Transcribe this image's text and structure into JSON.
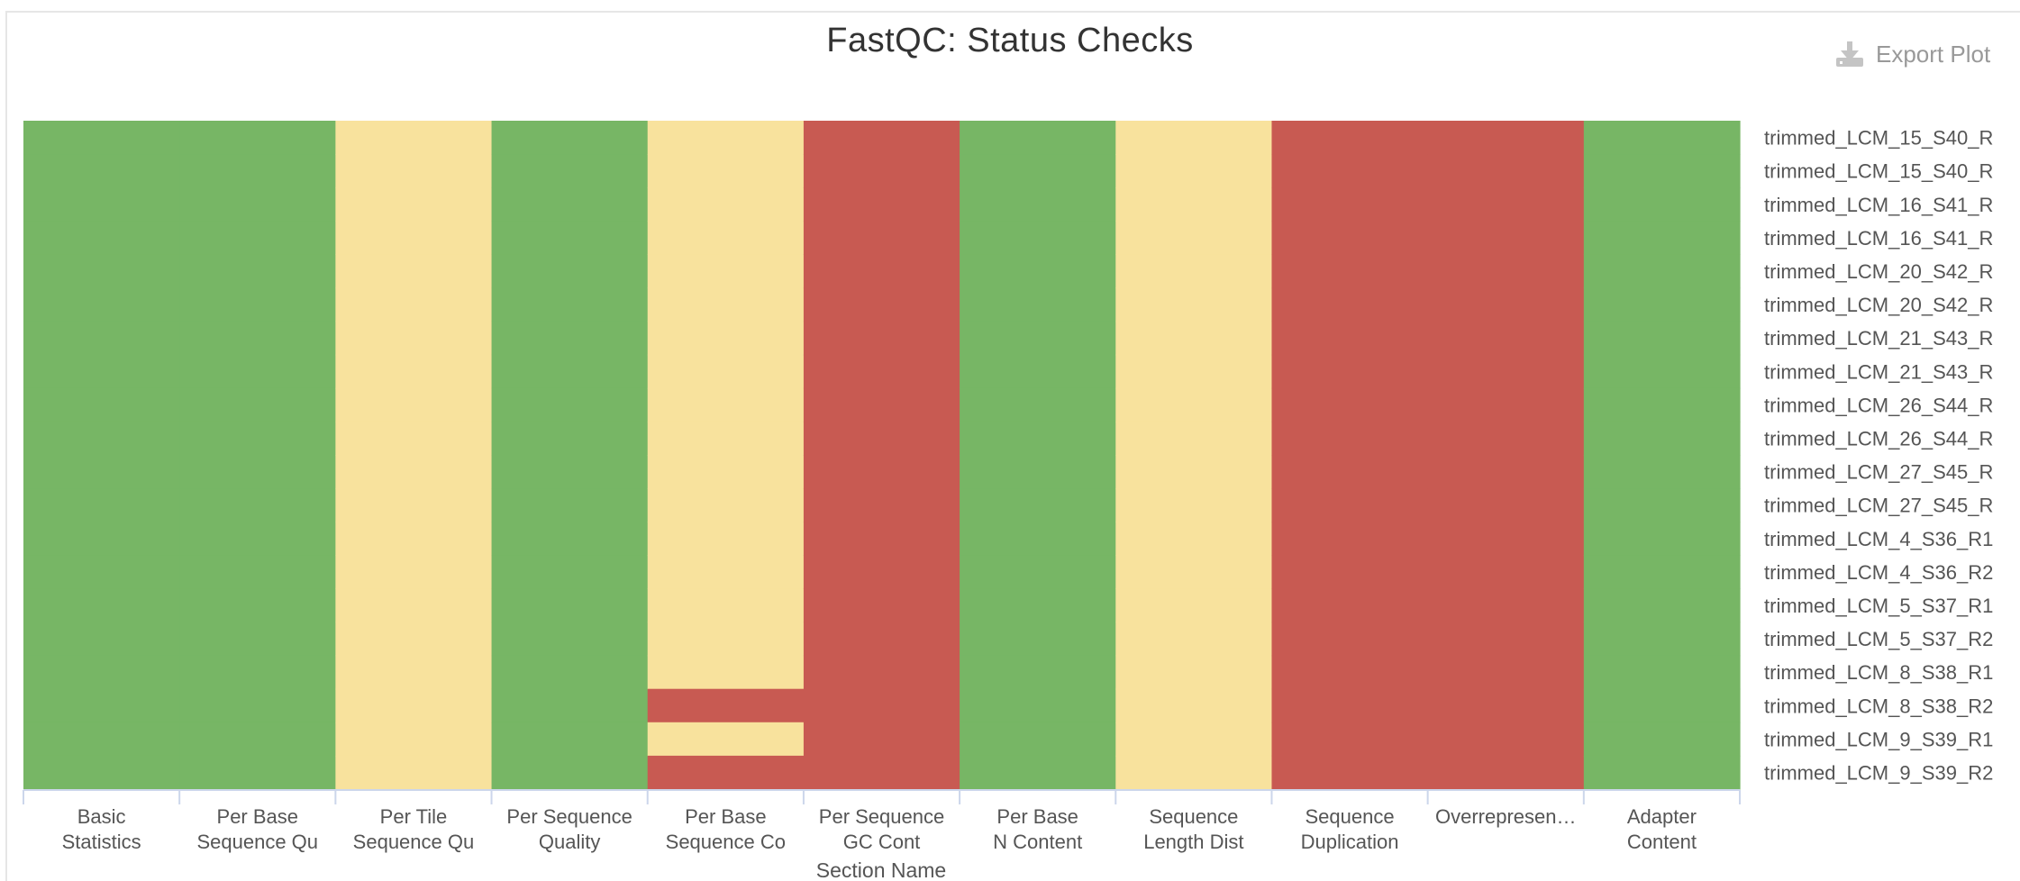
{
  "title": "FastQC: Status Checks",
  "toolbar": {
    "export_label": "Export Plot",
    "export_icon": "download-icon"
  },
  "colors": {
    "pass": "#77b665",
    "warn": "#f8e29d",
    "fail": "#c85a52"
  },
  "chart_data": {
    "type": "heatmap",
    "title": "FastQC: Status Checks",
    "xlabel": "Section Name",
    "ylabel": "",
    "x_categories": [
      "Basic Statistics",
      "Per Base Sequence Qu",
      "Per Tile Sequence Qu",
      "Per Sequence Quality",
      "Per Base Sequence Co",
      "Per Sequence GC Cont",
      "Per Base N Content",
      "Sequence Length Dist",
      "Sequence Duplication",
      "Overrepresen…",
      "Adapter Content"
    ],
    "y_categories": [
      "trimmed_LCM_15_S40_R",
      "trimmed_LCM_15_S40_R",
      "trimmed_LCM_16_S41_R",
      "trimmed_LCM_16_S41_R",
      "trimmed_LCM_20_S42_R",
      "trimmed_LCM_20_S42_R",
      "trimmed_LCM_21_S43_R",
      "trimmed_LCM_21_S43_R",
      "trimmed_LCM_26_S44_R",
      "trimmed_LCM_26_S44_R",
      "trimmed_LCM_27_S45_R",
      "trimmed_LCM_27_S45_R",
      "trimmed_LCM_4_S36_R1",
      "trimmed_LCM_4_S36_R2",
      "trimmed_LCM_5_S37_R1",
      "trimmed_LCM_5_S37_R2",
      "trimmed_LCM_8_S38_R1",
      "trimmed_LCM_8_S38_R2",
      "trimmed_LCM_9_S39_R1",
      "trimmed_LCM_9_S39_R2"
    ],
    "status_key": {
      "pass": 1,
      "warn": 0.5,
      "fail": 0
    },
    "column_status": [
      "pass",
      "pass",
      "warn",
      "pass",
      "per_row",
      "fail",
      "pass",
      "warn",
      "fail",
      "fail",
      "pass"
    ],
    "per_base_sequence_content_by_row": [
      "warn",
      "warn",
      "warn",
      "warn",
      "warn",
      "warn",
      "warn",
      "warn",
      "warn",
      "warn",
      "warn",
      "warn",
      "warn",
      "warn",
      "warn",
      "warn",
      "warn",
      "fail",
      "warn",
      "fail"
    ],
    "legend": "none",
    "grid": false
  }
}
